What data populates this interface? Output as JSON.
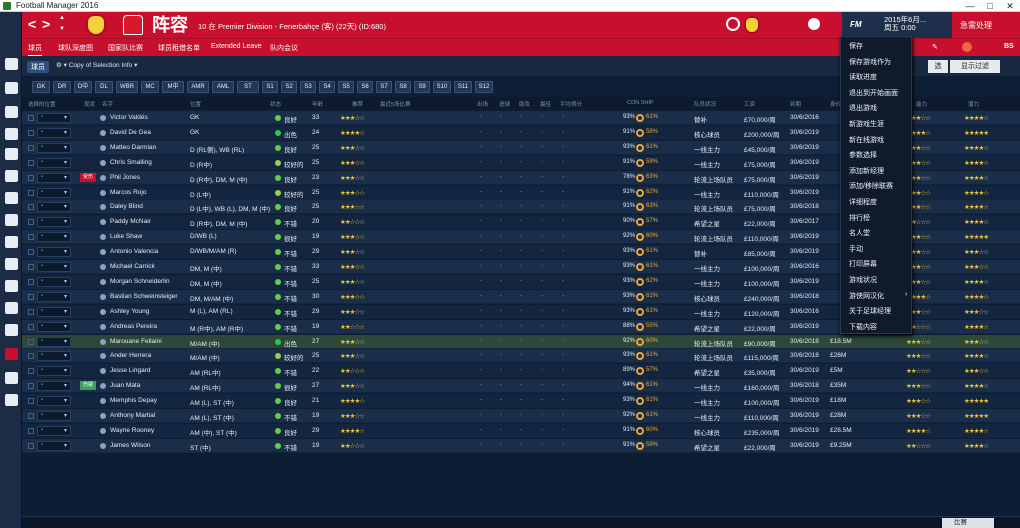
{
  "window": {
    "title": "Football Manager 2016",
    "minimize": "—",
    "maximize": "□",
    "close": "✕"
  },
  "header": {
    "back": "<",
    "forward": ">",
    "title": "阵容",
    "subtitle": "10 在 Premier Division - Fenerbahçe (客) (22天) (ID:680)",
    "date_line1": "2015年6月...",
    "date_line2": "周五 0:00",
    "continue_label": "急需处理",
    "fm_label": "FM"
  },
  "subnav": [
    "球员",
    "球队深度图",
    "国家队比赛",
    "球员租借名单",
    "Extended Leave",
    "队内会议"
  ],
  "toolbar": {
    "tab_players": "球员",
    "view_label": "Copy of Selection Info",
    "btn_options": "选",
    "btn_filter": "显示过滤"
  },
  "positions": [
    "GK",
    "DR",
    "D中",
    "DL",
    "WBR",
    "MC",
    "M中",
    "AMR",
    "AML",
    "ST",
    "S1",
    "S2",
    "S3",
    "S4",
    "S5",
    "S6",
    "S7",
    "S8",
    "S9",
    "S10",
    "S11",
    "S12"
  ],
  "columns": {
    "sel": "选择的位置",
    "status": "现状",
    "name": "名字",
    "pos": "位置",
    "cond": "状态",
    "age": "年龄",
    "rec": "推荐",
    "last5": "最近5场比赛",
    "apps": "出场",
    "gls": "进球",
    "ast": "助攻",
    "pom": "最佳",
    "avg": "平均得分",
    "cs": "CON SHIP",
    "role": "队员状况",
    "wage": "工资",
    "exp": "到期",
    "val": "身价",
    "abil": "能力",
    "pot": "潜力"
  },
  "players": [
    {
      "name": "Victor Valdés",
      "pos": "GK",
      "cond": "良好",
      "dot": "#5fd04a",
      "age": "33",
      "rec": 3,
      "cs": "93%",
      "morale": "61%",
      "role": "替补",
      "wage": "£70,000/周",
      "exp": "30/6/2016",
      "val": "",
      "badge": "",
      "abil": 3,
      "pot": 4
    },
    {
      "name": "David De Gea",
      "pos": "GK",
      "cond": "出色",
      "dot": "#2ec84a",
      "age": "24",
      "rec": 4,
      "cs": "91%",
      "morale": "58%",
      "role": "核心球员",
      "wage": "£200,000/周",
      "exp": "30/6/2019",
      "val": "",
      "badge": "",
      "abil": 4,
      "pot": 5
    },
    {
      "name": "Matteo Darmian",
      "pos": "D (RL侧), WB (RL)",
      "cond": "良好",
      "dot": "#5fd04a",
      "age": "25",
      "rec": 3,
      "cs": "93%",
      "morale": "61%",
      "role": "一线主力",
      "wage": "£45,000/周",
      "exp": "30/6/2019",
      "val": "",
      "badge": "",
      "abil": 3,
      "pot": 4
    },
    {
      "name": "Chris Smalling",
      "pos": "D (R中)",
      "cond": "较好的",
      "dot": "#9bd04a",
      "age": "25",
      "rec": 3,
      "cs": "91%",
      "morale": "59%",
      "role": "一线主力",
      "wage": "£75,000/周",
      "exp": "30/6/2019",
      "val": "",
      "badge": "",
      "abil": 3,
      "pot": 4
    },
    {
      "name": "Phil Jones",
      "pos": "D (R中), DM, M (中)",
      "cond": "良好",
      "dot": "#5fd04a",
      "age": "23",
      "rec": 3,
      "cs": "78%",
      "morale": "63%",
      "role": "轮流上场队员",
      "wage": "£75,000/周",
      "exp": "30/6/2019",
      "val": "",
      "badge": "受伤",
      "abil": 3,
      "pot": 4
    },
    {
      "name": "Marcos Rojo",
      "pos": "D (L中)",
      "cond": "较好的",
      "dot": "#9bd04a",
      "age": "25",
      "rec": 3,
      "cs": "91%",
      "morale": "62%",
      "role": "一线主力",
      "wage": "£110,000/周",
      "exp": "30/6/2019",
      "val": "",
      "badge": "",
      "abil": 3,
      "pot": 4
    },
    {
      "name": "Daley Blind",
      "pos": "D (L中), WB (L), DM, M (中)",
      "cond": "良好",
      "dot": "#5fd04a",
      "age": "25",
      "rec": 3,
      "cs": "91%",
      "morale": "63%",
      "role": "轮流上场队员",
      "wage": "£75,000/周",
      "exp": "30/6/2018",
      "val": "",
      "badge": "",
      "abil": 3,
      "pot": 4
    },
    {
      "name": "Paddy McNair",
      "pos": "D (R中), DM, M (中)",
      "cond": "不错",
      "dot": "#5fd04a",
      "age": "20",
      "rec": 2,
      "cs": "90%",
      "morale": "57%",
      "role": "希望之星",
      "wage": "£22,000/周",
      "exp": "30/6/2017",
      "val": "",
      "badge": "",
      "abil": 2,
      "pot": 4
    },
    {
      "name": "Luke Shaw",
      "pos": "D/WB (L)",
      "cond": "很好",
      "dot": "#5fd04a",
      "age": "19",
      "rec": 3,
      "cs": "92%",
      "morale": "60%",
      "role": "轮流上场队员",
      "wage": "£110,000/周",
      "exp": "30/6/2019",
      "val": "",
      "badge": "",
      "abil": 3,
      "pot": 5
    },
    {
      "name": "Antonio Valencia",
      "pos": "D/WB/M/AM (R)",
      "cond": "不错",
      "dot": "#5fd04a",
      "age": "29",
      "rec": 3,
      "cs": "93%",
      "morale": "61%",
      "role": "替补",
      "wage": "£85,000/周",
      "exp": "30/6/2019",
      "val": "",
      "badge": "",
      "abil": 3,
      "pot": 3
    },
    {
      "name": "Michael Carrick",
      "pos": "DM, M (中)",
      "cond": "不错",
      "dot": "#5fd04a",
      "age": "33",
      "rec": 3,
      "cs": "93%",
      "morale": "61%",
      "role": "一线主力",
      "wage": "£100,000/周",
      "exp": "30/6/2016",
      "val": "",
      "badge": "",
      "abil": 3,
      "pot": 3
    },
    {
      "name": "Morgan Schneiderlin",
      "pos": "DM, M (中)",
      "cond": "不错",
      "dot": "#5fd04a",
      "age": "25",
      "rec": 3,
      "cs": "93%",
      "morale": "62%",
      "role": "一线主力",
      "wage": "£100,000/周",
      "exp": "30/6/2019",
      "val": "",
      "badge": "",
      "abil": 3,
      "pot": 4
    },
    {
      "name": "Bastian Schweinsteiger",
      "pos": "DM, M/AM (中)",
      "cond": "不错",
      "dot": "#5fd04a",
      "age": "30",
      "rec": 3,
      "cs": "93%",
      "morale": "61%",
      "role": "核心球员",
      "wage": "£240,000/周",
      "exp": "30/6/2018",
      "val": "",
      "badge": "",
      "abil": 4,
      "pot": 4
    },
    {
      "name": "Ashley Young",
      "pos": "M (L), AM (RL)",
      "cond": "不错",
      "dot": "#5fd04a",
      "age": "29",
      "rec": 3,
      "cs": "93%",
      "morale": "61%",
      "role": "一线主力",
      "wage": "£120,000/周",
      "exp": "30/6/2016",
      "val": "",
      "badge": "",
      "abil": 3,
      "pot": 3
    },
    {
      "name": "Andreas Pereira",
      "pos": "M (R中), AM (R中)",
      "cond": "不错",
      "dot": "#5fd04a",
      "age": "19",
      "rec": 2,
      "cs": "88%",
      "morale": "55%",
      "role": "希望之星",
      "wage": "£22,000/周",
      "exp": "30/6/2019",
      "val": "",
      "badge": "",
      "abil": 2,
      "pot": 4
    },
    {
      "name": "Marouane Fellaini",
      "pos": "M/AM (中)",
      "cond": "出色",
      "dot": "#2ec84a",
      "age": "27",
      "rec": 3,
      "cs": "92%",
      "morale": "60%",
      "role": "轮流上场队员",
      "wage": "£90,000/周",
      "exp": "30/6/2018",
      "val": "£18.5M",
      "badge": "",
      "abil": 3,
      "pot": 3
    },
    {
      "name": "Ander Herrera",
      "pos": "M/AM (中)",
      "cond": "较好的",
      "dot": "#9bd04a",
      "age": "25",
      "rec": 3,
      "cs": "93%",
      "morale": "61%",
      "role": "轮流上场队员",
      "wage": "£115,000/周",
      "exp": "30/6/2018",
      "val": "£26M",
      "badge": "",
      "abil": 3,
      "pot": 4
    },
    {
      "name": "Jesse Lingard",
      "pos": "AM (RL中)",
      "cond": "不错",
      "dot": "#5fd04a",
      "age": "22",
      "rec": 2,
      "cs": "89%",
      "morale": "57%",
      "role": "希望之星",
      "wage": "£35,000/周",
      "exp": "30/6/2019",
      "val": "£5M",
      "badge": "",
      "abil": 2,
      "pot": 3
    },
    {
      "name": "Juan Mata",
      "pos": "AM (RL中)",
      "cond": "很好",
      "dot": "#5fd04a",
      "age": "27",
      "rec": 3,
      "cs": "94%",
      "morale": "61%",
      "role": "一线主力",
      "wage": "£160,000/周",
      "exp": "30/6/2018",
      "val": "£35M",
      "badge": "伤疑",
      "abil": 3,
      "pot": 4
    },
    {
      "name": "Memphis Depay",
      "pos": "AM (L), ST (中)",
      "cond": "良好",
      "dot": "#5fd04a",
      "age": "21",
      "rec": 4,
      "cs": "93%",
      "morale": "61%",
      "role": "一线主力",
      "wage": "£100,000/周",
      "exp": "30/6/2019",
      "val": "£18M",
      "badge": "",
      "abil": 3,
      "pot": 5
    },
    {
      "name": "Anthony Martial",
      "pos": "AM (L), ST (中)",
      "cond": "不错",
      "dot": "#5fd04a",
      "age": "19",
      "rec": 3,
      "cs": "92%",
      "morale": "61%",
      "role": "一线主力",
      "wage": "£110,000/周",
      "exp": "30/6/2019",
      "val": "£28M",
      "badge": "",
      "abil": 3,
      "pot": 5
    },
    {
      "name": "Wayne Rooney",
      "pos": "AM (中), ST (中)",
      "cond": "良好",
      "dot": "#5fd04a",
      "age": "29",
      "rec": 4,
      "cs": "91%",
      "morale": "60%",
      "role": "核心球员",
      "wage": "£235,000/周",
      "exp": "30/6/2019",
      "val": "£28.5M",
      "badge": "",
      "abil": 4,
      "pot": 4
    },
    {
      "name": "James Wilson",
      "pos": "ST (中)",
      "cond": "不错",
      "dot": "#5fd04a",
      "age": "19",
      "rec": 2,
      "cs": "91%",
      "morale": "59%",
      "role": "希望之星",
      "wage": "£22,000/周",
      "exp": "30/6/2019",
      "val": "£9.25M",
      "badge": "",
      "abil": 2,
      "pot": 4
    }
  ],
  "menu": [
    {
      "label": "保存",
      "sub": false
    },
    {
      "label": "保存游戏作为",
      "sub": false
    },
    {
      "label": "读取进度",
      "sub": false
    },
    {
      "label": "退出到开始画面",
      "sub": false
    },
    {
      "label": "退出游戏",
      "sub": false
    },
    {
      "label": "新游戏生涯",
      "sub": false
    },
    {
      "label": "新在线游戏",
      "sub": false
    },
    {
      "label": "参数选择",
      "sub": false
    },
    {
      "label": "添加新经理",
      "sub": false
    },
    {
      "label": "添加/移除联赛",
      "sub": false
    },
    {
      "label": "详细程度",
      "sub": false
    },
    {
      "label": "排行榜",
      "sub": false
    },
    {
      "label": "名人堂",
      "sub": false
    },
    {
      "label": "手动",
      "sub": false
    },
    {
      "label": "打印屏幕",
      "sub": false
    },
    {
      "label": "游戏状况",
      "sub": false
    },
    {
      "label": "游侠网汉化",
      "sub": true
    },
    {
      "label": "关于足球经理",
      "sub": false
    },
    {
      "label": "下载内容",
      "sub": false
    }
  ],
  "bottom": {
    "btn": "比赛"
  }
}
